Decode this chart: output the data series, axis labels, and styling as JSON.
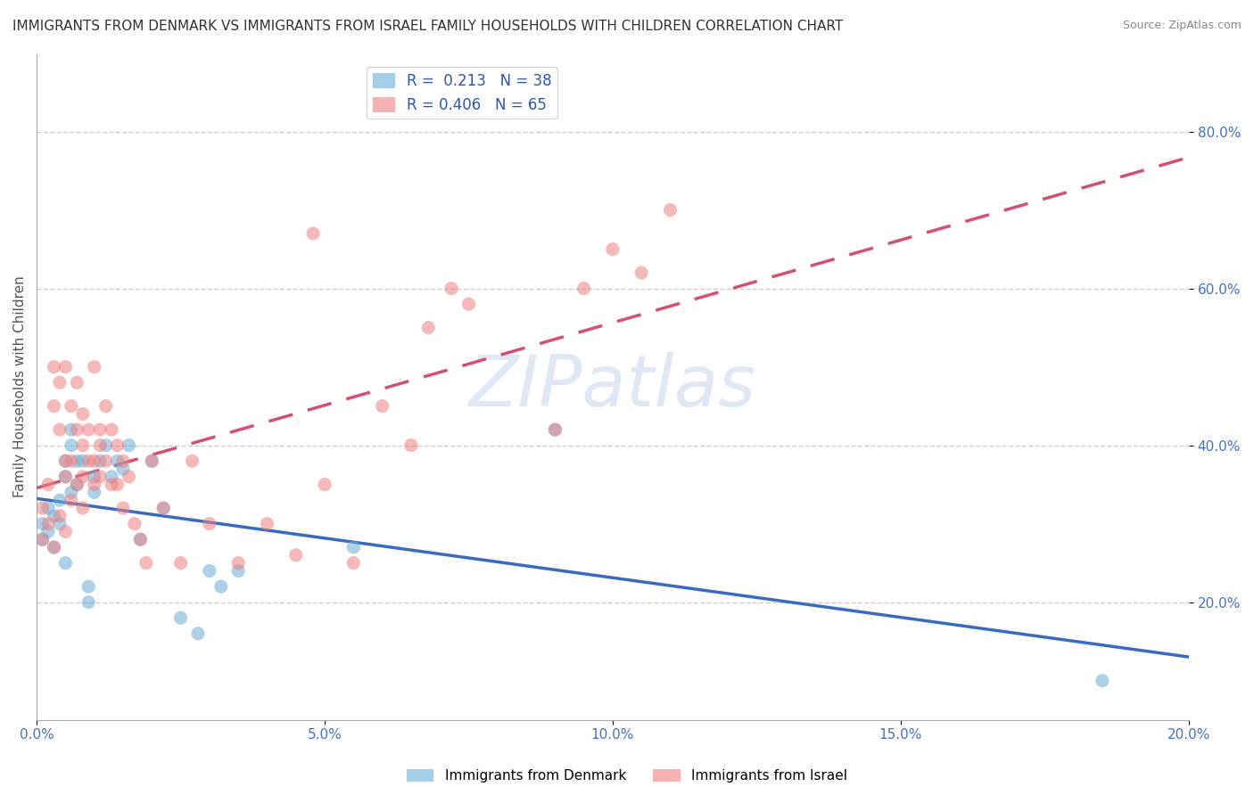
{
  "title": "IMMIGRANTS FROM DENMARK VS IMMIGRANTS FROM ISRAEL FAMILY HOUSEHOLDS WITH CHILDREN CORRELATION CHART",
  "source": "Source: ZipAtlas.com",
  "ylabel": "Family Households with Children",
  "watermark": "ZIPatlas",
  "denmark_R": 0.213,
  "denmark_N": 38,
  "israel_R": 0.406,
  "israel_N": 65,
  "denmark_color": "#6baed6",
  "israel_color": "#f08080",
  "trend_denmark_color": "#3a6bbf",
  "trend_israel_color": "#d45070",
  "background_color": "#ffffff",
  "grid_color": "#cccccc",
  "xlim": [
    0.0,
    0.2
  ],
  "ylim": [
    0.05,
    0.9
  ],
  "yticks": [
    0.2,
    0.4,
    0.6,
    0.8
  ],
  "xticks": [
    0.0,
    0.05,
    0.1,
    0.15,
    0.2
  ],
  "denmark_x": [
    0.001,
    0.001,
    0.002,
    0.002,
    0.003,
    0.003,
    0.004,
    0.004,
    0.005,
    0.005,
    0.005,
    0.006,
    0.006,
    0.006,
    0.007,
    0.007,
    0.008,
    0.009,
    0.009,
    0.01,
    0.01,
    0.011,
    0.012,
    0.013,
    0.014,
    0.015,
    0.016,
    0.018,
    0.02,
    0.022,
    0.025,
    0.028,
    0.03,
    0.032,
    0.035,
    0.055,
    0.09,
    0.185
  ],
  "denmark_y": [
    0.28,
    0.3,
    0.32,
    0.29,
    0.27,
    0.31,
    0.33,
    0.3,
    0.25,
    0.36,
    0.38,
    0.34,
    0.4,
    0.42,
    0.35,
    0.38,
    0.38,
    0.22,
    0.2,
    0.36,
    0.34,
    0.38,
    0.4,
    0.36,
    0.38,
    0.37,
    0.4,
    0.28,
    0.38,
    0.32,
    0.18,
    0.16,
    0.24,
    0.22,
    0.24,
    0.27,
    0.42,
    0.1
  ],
  "israel_x": [
    0.001,
    0.001,
    0.002,
    0.002,
    0.003,
    0.003,
    0.003,
    0.004,
    0.004,
    0.004,
    0.005,
    0.005,
    0.005,
    0.005,
    0.006,
    0.006,
    0.006,
    0.007,
    0.007,
    0.007,
    0.008,
    0.008,
    0.008,
    0.008,
    0.009,
    0.009,
    0.01,
    0.01,
    0.01,
    0.011,
    0.011,
    0.011,
    0.012,
    0.012,
    0.013,
    0.013,
    0.014,
    0.014,
    0.015,
    0.015,
    0.016,
    0.017,
    0.018,
    0.019,
    0.02,
    0.022,
    0.025,
    0.027,
    0.03,
    0.035,
    0.04,
    0.045,
    0.048,
    0.05,
    0.055,
    0.06,
    0.065,
    0.068,
    0.072,
    0.075,
    0.09,
    0.095,
    0.1,
    0.105,
    0.11
  ],
  "israel_y": [
    0.28,
    0.32,
    0.35,
    0.3,
    0.27,
    0.45,
    0.5,
    0.31,
    0.48,
    0.42,
    0.36,
    0.29,
    0.5,
    0.38,
    0.33,
    0.45,
    0.38,
    0.42,
    0.35,
    0.48,
    0.32,
    0.36,
    0.4,
    0.44,
    0.38,
    0.42,
    0.35,
    0.5,
    0.38,
    0.42,
    0.36,
    0.4,
    0.45,
    0.38,
    0.35,
    0.42,
    0.4,
    0.35,
    0.38,
    0.32,
    0.36,
    0.3,
    0.28,
    0.25,
    0.38,
    0.32,
    0.25,
    0.38,
    0.3,
    0.25,
    0.3,
    0.26,
    0.67,
    0.35,
    0.25,
    0.45,
    0.4,
    0.55,
    0.6,
    0.58,
    0.42,
    0.6,
    0.65,
    0.62,
    0.7
  ],
  "title_fontsize": 11,
  "axis_label_fontsize": 11,
  "tick_fontsize": 11,
  "legend_fontsize": 12
}
